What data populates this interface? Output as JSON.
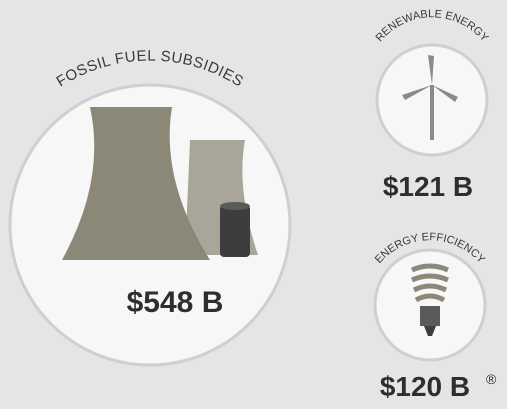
{
  "fossil": {
    "label": "FOSSIL FUEL SUBSIDIES",
    "amount": "$548 B"
  },
  "renewable": {
    "label": "RENEWABLE ENERGY",
    "amount": "$121 B"
  },
  "efficiency": {
    "label": "ENERGY EFFICIENCY",
    "amount": "$120 B",
    "footnote": "®"
  }
}
